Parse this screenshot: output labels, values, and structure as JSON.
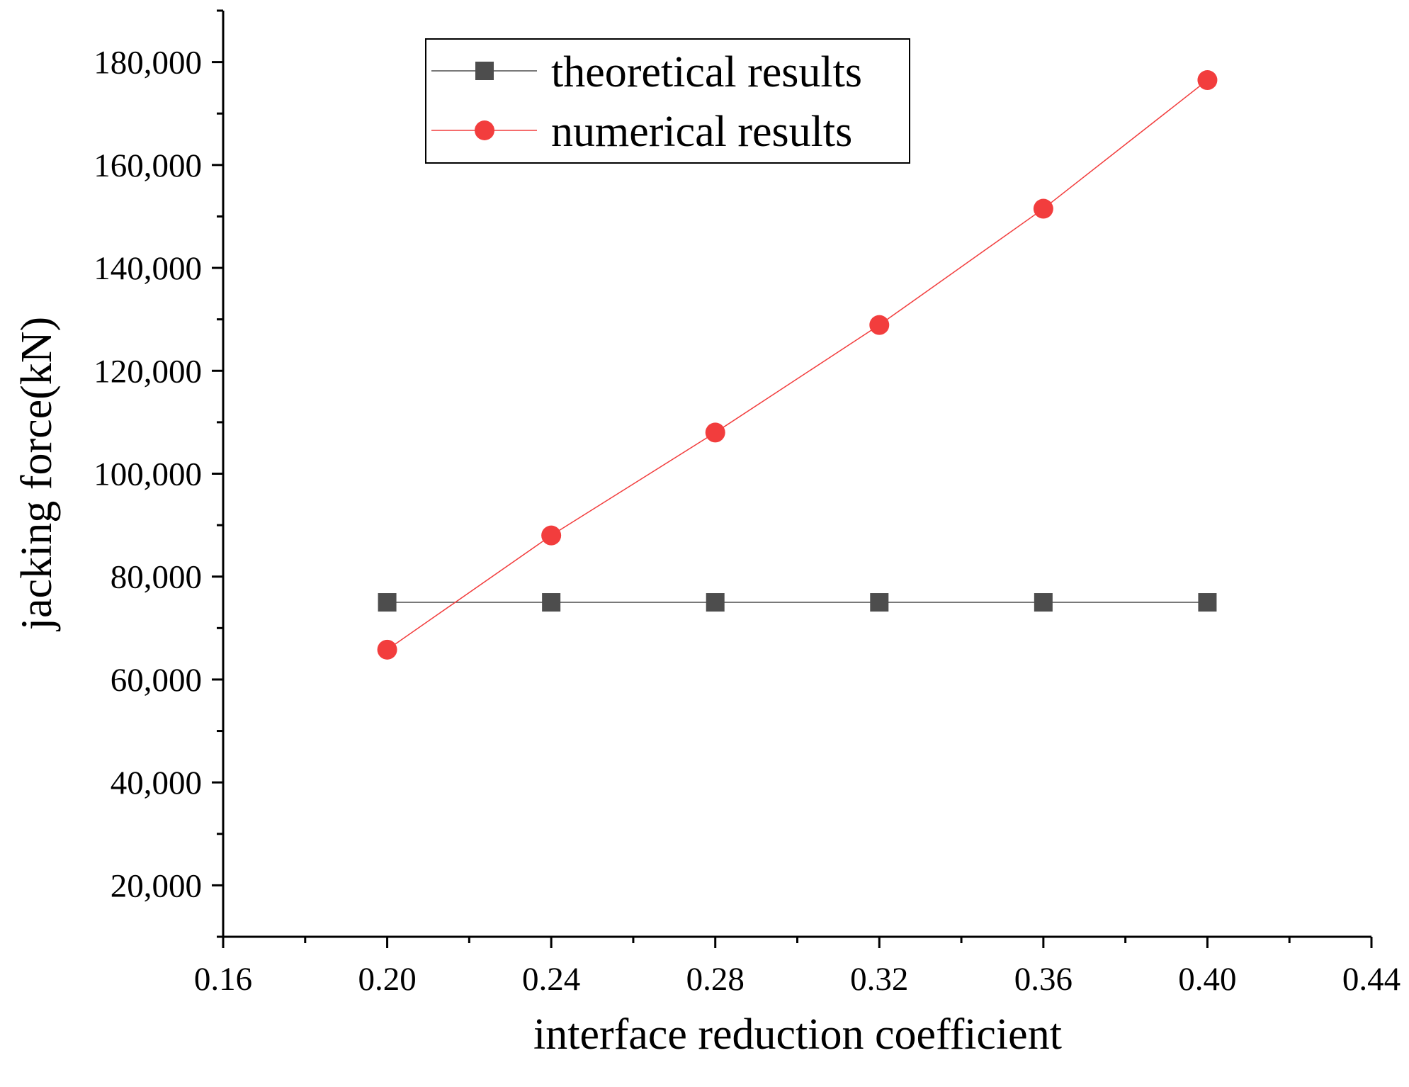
{
  "chart_data": {
    "type": "line",
    "title": "",
    "xlabel": "interface reduction coefficient",
    "ylabel": "jacking force(kN)",
    "xlim": [
      0.16,
      0.44
    ],
    "ylim": [
      10000,
      190000
    ],
    "x_ticks": [
      "0.16",
      "0.20",
      "0.24",
      "0.28",
      "0.32",
      "0.36",
      "0.40",
      "0.44"
    ],
    "y_ticks": [
      "20,000",
      "40,000",
      "60,000",
      "80,000",
      "100,000",
      "120,000",
      "140,000",
      "160,000",
      "180,000"
    ],
    "legend_position": "top-center",
    "grid": false,
    "series": [
      {
        "name": "theoretical results",
        "marker": "square",
        "color": "#4d4d4d",
        "x": [
          0.2,
          0.24,
          0.28,
          0.32,
          0.36,
          0.4
        ],
        "y": [
          75000,
          75000,
          75000,
          75000,
          75000,
          75000
        ]
      },
      {
        "name": "numerical results",
        "marker": "circle",
        "color": "#f23d3d",
        "x": [
          0.2,
          0.24,
          0.28,
          0.32,
          0.36,
          0.4
        ],
        "y": [
          65800,
          88000,
          108000,
          128900,
          151500,
          176500
        ]
      }
    ]
  }
}
